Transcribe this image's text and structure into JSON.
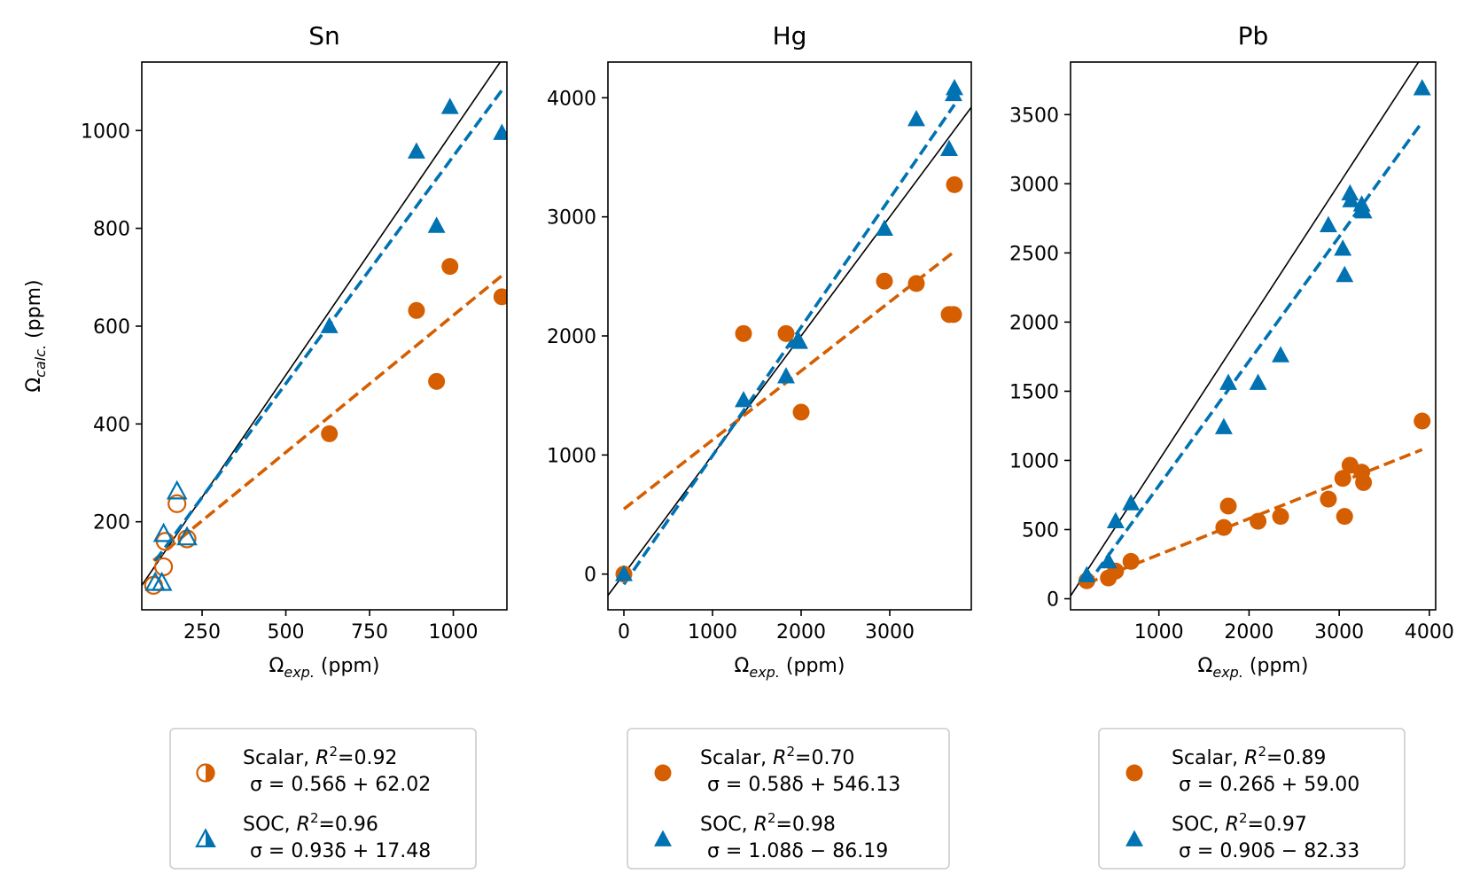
{
  "colors": {
    "scalar": "#d55e00",
    "soc": "#0072b2"
  },
  "y_label": {
    "omega": "Ω",
    "sub": "calc.",
    "unit": " (ppm)"
  },
  "x_label": {
    "omega": "Ω",
    "sub": "exp.",
    "unit": " (ppm)"
  },
  "chart_data": [
    {
      "type": "scatter",
      "title": "Sn",
      "xlim": [
        70,
        1160
      ],
      "ylim": [
        20,
        1140
      ],
      "xticks": [
        250,
        500,
        750,
        1000
      ],
      "yticks": [
        200,
        400,
        600,
        800,
        1000
      ],
      "grid": false,
      "legend_position": "below",
      "marker_style": "open-for-small-values",
      "series": [
        {
          "key": "scalar",
          "marker": "circle",
          "x": [
            105,
            135,
            140,
            175,
            205,
            630,
            890,
            950,
            990,
            1145
          ],
          "y": [
            70,
            108,
            160,
            237,
            165,
            380,
            632,
            487,
            722,
            660
          ],
          "legend": "Scalar, R²=0.92",
          "legend_name": "Scalar, ",
          "legend_r2": "=0.92",
          "equation": "σ = 0.56δ + 62.02",
          "fit": {
            "slope": 0.56,
            "intercept": 62.02
          }
        },
        {
          "key": "soc",
          "marker": "triangle",
          "x": [
            110,
            130,
            135,
            175,
            205,
            630,
            890,
            950,
            990,
            1145
          ],
          "y": [
            75,
            75,
            175,
            262,
            168,
            600,
            957,
            805,
            1048,
            995
          ],
          "legend": "SOC, R²=0.96",
          "legend_name": "SOC, ",
          "legend_r2": "=0.96",
          "equation": "σ = 0.93δ + 17.48",
          "fit": {
            "slope": 0.93,
            "intercept": 17.48
          }
        }
      ]
    },
    {
      "type": "scatter",
      "title": "Hg",
      "xlim": [
        -180,
        3920
      ],
      "ylim": [
        -300,
        4300
      ],
      "xticks": [
        0,
        1000,
        2000,
        3000
      ],
      "yticks": [
        0,
        1000,
        2000,
        3000,
        4000
      ],
      "grid": false,
      "legend_position": "below",
      "series": [
        {
          "key": "scalar",
          "marker": "circle",
          "x": [
            0,
            1350,
            1830,
            2000,
            2940,
            3300,
            3670,
            3720,
            3730
          ],
          "y": [
            0,
            2020,
            2020,
            1360,
            2460,
            2440,
            2180,
            2180,
            3270
          ],
          "legend": "Scalar, R²=0.70",
          "legend_name": "Scalar, ",
          "legend_r2": "=0.70",
          "equation": "σ = 0.58δ + 546.13",
          "fit": {
            "slope": 0.58,
            "intercept": 546.13
          }
        },
        {
          "key": "soc",
          "marker": "triangle",
          "x": [
            0,
            1350,
            1830,
            1960,
            1980,
            2940,
            3300,
            3670,
            3720,
            3730
          ],
          "y": [
            0,
            1460,
            1660,
            1960,
            1950,
            2900,
            3820,
            3570,
            4030,
            4080
          ],
          "legend": "SOC, R²=0.98",
          "legend_name": "SOC, ",
          "legend_r2": "=0.98",
          "equation": "σ = 1.08δ − 86.19",
          "fit": {
            "slope": 1.08,
            "intercept": -86.19
          }
        }
      ]
    },
    {
      "type": "scatter",
      "title": "Pb",
      "xlim": [
        20,
        4070
      ],
      "ylim": [
        -80,
        3880
      ],
      "xticks": [
        1000,
        2000,
        3000,
        4000
      ],
      "yticks": [
        0,
        500,
        1000,
        1500,
        2000,
        2500,
        3000,
        3500
      ],
      "grid": false,
      "legend_position": "below",
      "series": [
        {
          "key": "scalar",
          "marker": "circle",
          "x": [
            200,
            440,
            520,
            690,
            1720,
            1770,
            2100,
            2350,
            2880,
            3040,
            3060,
            3120,
            3250,
            3270,
            3920
          ],
          "y": [
            130,
            150,
            200,
            270,
            515,
            670,
            560,
            595,
            720,
            870,
            595,
            965,
            915,
            840,
            1285
          ],
          "legend": "Scalar, R²=0.89",
          "legend_name": "Scalar, ",
          "legend_r2": "=0.89",
          "equation": "σ = 0.26δ + 59.00",
          "fit": {
            "slope": 0.26,
            "intercept": 59.0
          }
        },
        {
          "key": "soc",
          "marker": "triangle",
          "x": [
            200,
            440,
            520,
            690,
            1720,
            1770,
            2100,
            2350,
            2880,
            3040,
            3060,
            3120,
            3130,
            3250,
            3270,
            3920
          ],
          "y": [
            170,
            270,
            560,
            690,
            1240,
            1560,
            1560,
            1760,
            2700,
            2530,
            2340,
            2930,
            2880,
            2850,
            2800,
            3690
          ],
          "legend": "SOC, R²=0.97",
          "legend_name": "SOC, ",
          "legend_r2": "=0.97",
          "equation": "σ = 0.90δ − 82.33",
          "fit": {
            "slope": 0.9,
            "intercept": -82.33
          }
        }
      ]
    }
  ]
}
